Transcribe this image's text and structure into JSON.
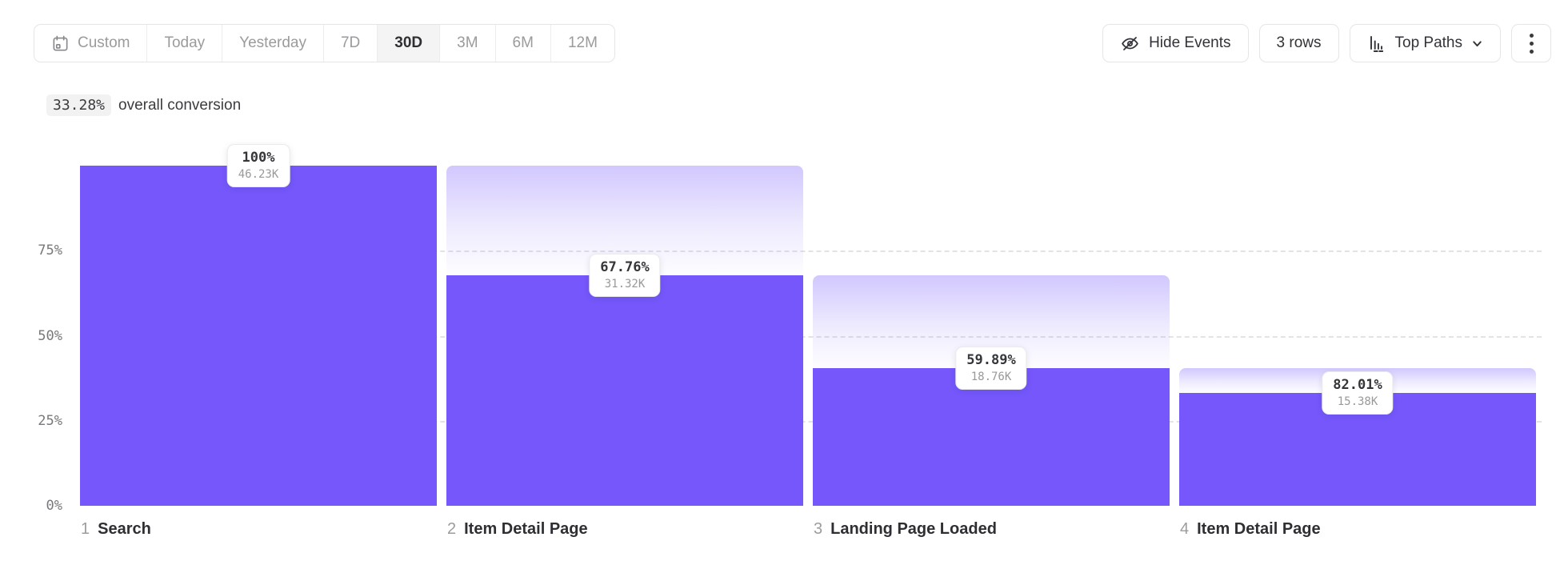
{
  "toolbar": {
    "date_ranges": [
      {
        "label": "Custom"
      },
      {
        "label": "Today"
      },
      {
        "label": "Yesterday"
      },
      {
        "label": "7D"
      },
      {
        "label": "30D"
      },
      {
        "label": "3M"
      },
      {
        "label": "6M"
      },
      {
        "label": "12M"
      }
    ],
    "active_range": "30D",
    "hide_events": {
      "label": "Hide Events"
    },
    "rows": {
      "label": "3 rows"
    },
    "top_paths": {
      "label": "Top Paths"
    }
  },
  "summary": {
    "value": "33.28%",
    "text": "overall conversion"
  },
  "chart_data": {
    "type": "bar",
    "subtype": "funnel",
    "title": "",
    "ylim": [
      0,
      100
    ],
    "grid": "horizontal dashed lines at 25%, 50%, 75%",
    "legend": "none",
    "y_ticks": [
      {
        "label": "75%",
        "value": 75
      },
      {
        "label": "50%",
        "value": 50
      },
      {
        "label": "25%",
        "value": 25
      },
      {
        "label": "0%",
        "value": 0
      }
    ],
    "categories": [
      "Search",
      "Item Detail Page",
      "Landing Page Loaded",
      "Item Detail Page"
    ],
    "steps": [
      {
        "step": "1",
        "label": "Search",
        "conversion_label": "100%",
        "count_label": "46.23K",
        "step_conversion_pct": 100,
        "overall_conversion_pct": 100
      },
      {
        "step": "2",
        "label": "Item Detail Page",
        "conversion_label": "67.76%",
        "count_label": "31.32K",
        "step_conversion_pct": 67.76,
        "overall_conversion_pct": 67.76
      },
      {
        "step": "3",
        "label": "Landing Page Loaded",
        "conversion_label": "59.89%",
        "count_label": "18.76K",
        "step_conversion_pct": 59.89,
        "overall_conversion_pct": 40.58
      },
      {
        "step": "4",
        "label": "Item Detail Page",
        "conversion_label": "82.01%",
        "count_label": "15.38K",
        "step_conversion_pct": 82.01,
        "overall_conversion_pct": 33.28
      }
    ],
    "overall_conversion": "33.28%",
    "colors": {
      "bar": "#7557fb",
      "bar_gradient_top": "rgba(117,87,251,0.33)",
      "gridline": "#e3e3e6"
    }
  }
}
